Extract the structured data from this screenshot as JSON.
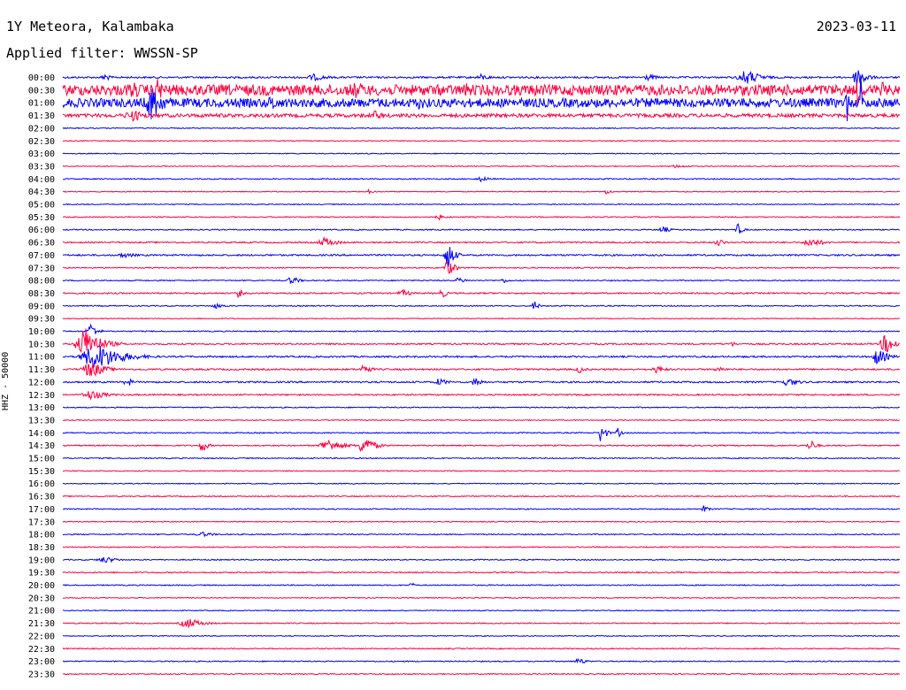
{
  "header": {
    "station": "1Y Meteora, Kalambaka",
    "date": "2023-03-11",
    "filter": "Applied filter: WWSSN-SP"
  },
  "chart_data": {
    "type": "line",
    "ylabel": "HHZ - 50000",
    "row_labels": [
      "00:00",
      "00:30",
      "01:00",
      "01:30",
      "02:00",
      "02:30",
      "03:00",
      "03:30",
      "04:00",
      "04:30",
      "05:00",
      "05:30",
      "06:00",
      "06:30",
      "07:00",
      "07:30",
      "08:00",
      "08:30",
      "09:00",
      "09:30",
      "10:00",
      "10:30",
      "11:00",
      "11:30",
      "12:00",
      "12:30",
      "13:00",
      "13:30",
      "14:00",
      "14:30",
      "15:00",
      "15:30",
      "16:00",
      "16:30",
      "17:00",
      "17:30",
      "18:00",
      "18:30",
      "19:00",
      "19:30",
      "20:00",
      "20:30",
      "21:00",
      "21:30",
      "22:00",
      "22:30",
      "23:00",
      "23:30"
    ],
    "colors": [
      "#0000ff",
      "#ff0040"
    ],
    "x_range_minutes": [
      0,
      30
    ],
    "noise_level": [
      1.0,
      6.0,
      5.0,
      2.0,
      0.5,
      0.5,
      0.5,
      0.5,
      0.6,
      0.5,
      0.5,
      0.6,
      0.6,
      0.8,
      0.9,
      0.6,
      0.6,
      0.8,
      0.6,
      0.5,
      0.6,
      0.8,
      0.9,
      0.9,
      0.9,
      0.8,
      0.6,
      0.5,
      0.6,
      0.7,
      0.6,
      0.5,
      0.5,
      0.6,
      0.6,
      0.5,
      0.6,
      0.6,
      0.6,
      0.7,
      0.6,
      0.5,
      0.5,
      0.6,
      0.5,
      0.6,
      0.6,
      0.6
    ],
    "events": [
      {
        "row": 0,
        "minute": 1.5,
        "amp": 6,
        "dur": 0.5
      },
      {
        "row": 0,
        "minute": 9,
        "amp": 4,
        "dur": 1.5
      },
      {
        "row": 0,
        "minute": 15,
        "amp": 4,
        "dur": 1
      },
      {
        "row": 0,
        "minute": 21,
        "amp": 4,
        "dur": 1
      },
      {
        "row": 0,
        "minute": 24.5,
        "amp": 9,
        "dur": 1.5
      },
      {
        "row": 0,
        "minute": 28.5,
        "amp": 14,
        "dur": 0.8
      },
      {
        "row": 1,
        "minute": 2.5,
        "amp": 10,
        "dur": 2
      },
      {
        "row": 1,
        "minute": 3.4,
        "amp": 14,
        "dur": 1
      },
      {
        "row": 1,
        "minute": 10.5,
        "amp": 10,
        "dur": 2
      },
      {
        "row": 1,
        "minute": 14.5,
        "amp": 9,
        "dur": 1.5
      },
      {
        "row": 1,
        "minute": 17,
        "amp": 8,
        "dur": 1.5
      },
      {
        "row": 1,
        "minute": 28.5,
        "amp": 20,
        "dur": 0.3
      },
      {
        "row": 1,
        "minute": 29.4,
        "amp": 10,
        "dur": 0.8
      },
      {
        "row": 2,
        "minute": 3.2,
        "amp": 22,
        "dur": 1.3
      },
      {
        "row": 2,
        "minute": 7.5,
        "amp": 10,
        "dur": 1
      },
      {
        "row": 2,
        "minute": 12.8,
        "amp": 8,
        "dur": 1.5
      },
      {
        "row": 2,
        "minute": 28.1,
        "amp": 25,
        "dur": 0.25
      },
      {
        "row": 2,
        "minute": 28.6,
        "amp": 40,
        "dur": 0.15
      },
      {
        "row": 3,
        "minute": 2.5,
        "amp": 7,
        "dur": 1.5
      },
      {
        "row": 3,
        "minute": 11.2,
        "amp": 6,
        "dur": 1
      },
      {
        "row": 7,
        "minute": 22,
        "amp": 2,
        "dur": 1.5
      },
      {
        "row": 8,
        "minute": 15,
        "amp": 3,
        "dur": 1
      },
      {
        "row": 9,
        "minute": 11,
        "amp": 4,
        "dur": 0.3
      },
      {
        "row": 9,
        "minute": 19.5,
        "amp": 4,
        "dur": 0.4
      },
      {
        "row": 11,
        "minute": 13.5,
        "amp": 3,
        "dur": 0.8
      },
      {
        "row": 12,
        "minute": 21.5,
        "amp": 4,
        "dur": 0.8
      },
      {
        "row": 12,
        "minute": 24.2,
        "amp": 7,
        "dur": 0.5
      },
      {
        "row": 13,
        "minute": 9.4,
        "amp": 6,
        "dur": 1.2
      },
      {
        "row": 13,
        "minute": 23.5,
        "amp": 5,
        "dur": 0.6
      },
      {
        "row": 13,
        "minute": 26.8,
        "amp": 6,
        "dur": 1.2
      },
      {
        "row": 14,
        "minute": 13.8,
        "amp": 18,
        "dur": 0.6
      },
      {
        "row": 14,
        "minute": 2.2,
        "amp": 3,
        "dur": 1.5
      },
      {
        "row": 15,
        "minute": 13.8,
        "amp": 10,
        "dur": 0.7
      },
      {
        "row": 16,
        "minute": 8.2,
        "amp": 5,
        "dur": 0.8
      },
      {
        "row": 16,
        "minute": 14.2,
        "amp": 4,
        "dur": 0.7
      },
      {
        "row": 16,
        "minute": 15.8,
        "amp": 3,
        "dur": 0.6
      },
      {
        "row": 17,
        "minute": 6.3,
        "amp": 6,
        "dur": 0.4
      },
      {
        "row": 17,
        "minute": 12.2,
        "amp": 4,
        "dur": 1
      },
      {
        "row": 17,
        "minute": 13.6,
        "amp": 7,
        "dur": 0.4
      },
      {
        "row": 18,
        "minute": 5.5,
        "amp": 3,
        "dur": 1
      },
      {
        "row": 18,
        "minute": 16.9,
        "amp": 7,
        "dur": 0.4
      },
      {
        "row": 20,
        "minute": 1,
        "amp": 10,
        "dur": 0.6
      },
      {
        "row": 21,
        "minute": 0.8,
        "amp": 20,
        "dur": 1.5
      },
      {
        "row": 21,
        "minute": 24,
        "amp": 3,
        "dur": 0.5
      },
      {
        "row": 21,
        "minute": 29.5,
        "amp": 12,
        "dur": 1
      },
      {
        "row": 22,
        "minute": 1.2,
        "amp": 16,
        "dur": 2.5
      },
      {
        "row": 22,
        "minute": 29.2,
        "amp": 10,
        "dur": 1
      },
      {
        "row": 23,
        "minute": 1,
        "amp": 10,
        "dur": 1.5
      },
      {
        "row": 23,
        "minute": 10.8,
        "amp": 8,
        "dur": 0.6
      },
      {
        "row": 23,
        "minute": 18.5,
        "amp": 5,
        "dur": 0.6
      },
      {
        "row": 23,
        "minute": 21.3,
        "amp": 5,
        "dur": 0.8
      },
      {
        "row": 23,
        "minute": 23.5,
        "amp": 4,
        "dur": 0.8
      },
      {
        "row": 24,
        "minute": 2.3,
        "amp": 7,
        "dur": 0.5
      },
      {
        "row": 24,
        "minute": 13.5,
        "amp": 5,
        "dur": 0.8
      },
      {
        "row": 24,
        "minute": 14.8,
        "amp": 7,
        "dur": 0.6
      },
      {
        "row": 24,
        "minute": 26,
        "amp": 5,
        "dur": 1.2
      },
      {
        "row": 25,
        "minute": 1,
        "amp": 6,
        "dur": 1.5
      },
      {
        "row": 28,
        "minute": 19.3,
        "amp": 16,
        "dur": 0.4
      },
      {
        "row": 28,
        "minute": 19.9,
        "amp": 6,
        "dur": 0.4
      },
      {
        "row": 29,
        "minute": 5,
        "amp": 9,
        "dur": 0.5
      },
      {
        "row": 29,
        "minute": 9.5,
        "amp": 8,
        "dur": 1.5
      },
      {
        "row": 29,
        "minute": 10.8,
        "amp": 12,
        "dur": 1
      },
      {
        "row": 29,
        "minute": 26.8,
        "amp": 7,
        "dur": 0.6
      },
      {
        "row": 34,
        "minute": 23,
        "amp": 4,
        "dur": 0.5
      },
      {
        "row": 36,
        "minute": 5,
        "amp": 3,
        "dur": 1.2
      },
      {
        "row": 38,
        "minute": 1.5,
        "amp": 4,
        "dur": 1.3
      },
      {
        "row": 40,
        "minute": 12.5,
        "amp": 3,
        "dur": 0.5
      },
      {
        "row": 43,
        "minute": 4.5,
        "amp": 6,
        "dur": 1.5
      },
      {
        "row": 46,
        "minute": 18.5,
        "amp": 4,
        "dur": 0.8
      }
    ]
  }
}
